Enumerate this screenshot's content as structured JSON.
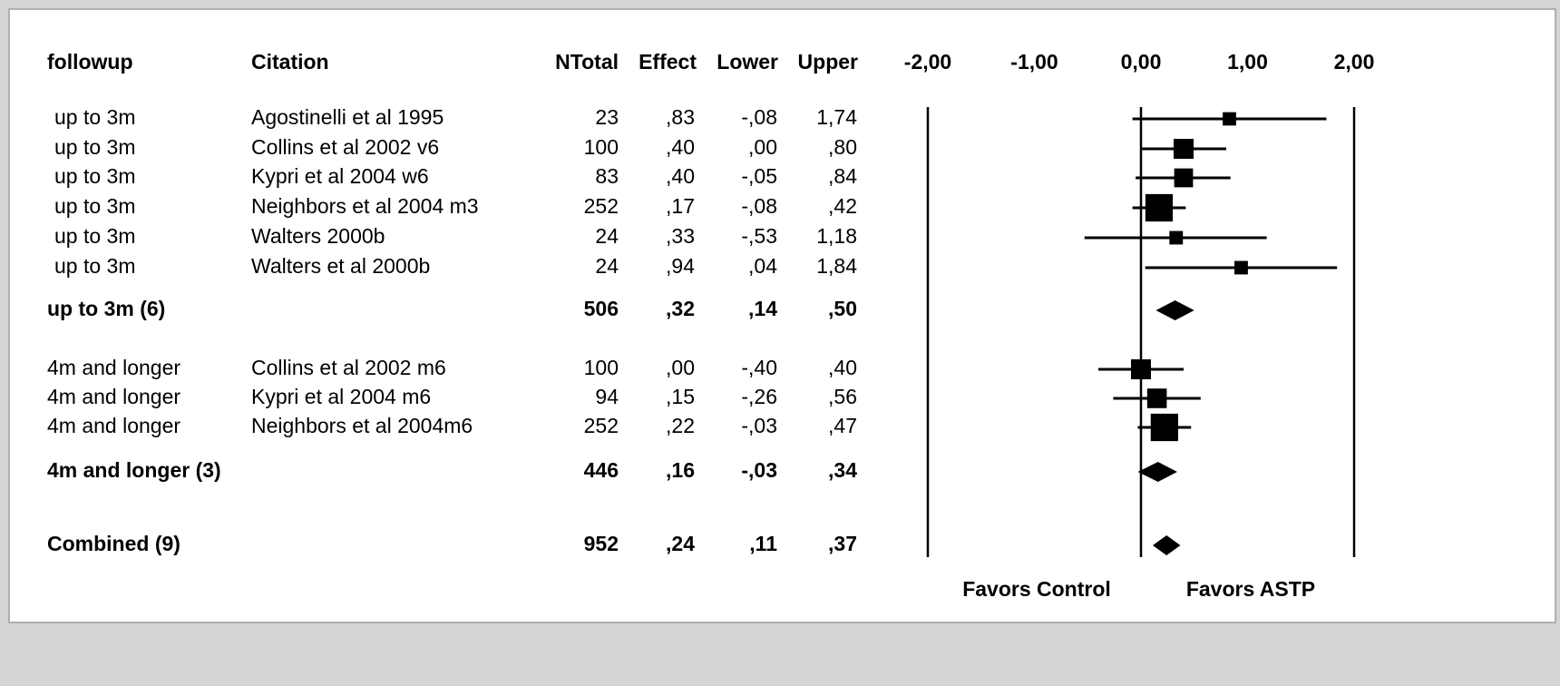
{
  "chart_data": {
    "type": "forest",
    "columns": [
      "followup",
      "Citation",
      "NTotal",
      "Effect",
      "Lower",
      "Upper"
    ],
    "rows": [
      {
        "followup": "up to 3m",
        "citation": "Agostinelli et al 1995",
        "n": 23,
        "effect": 0.83,
        "effect_label": ",83",
        "lower": -0.08,
        "lower_label": "-,08",
        "upper": 1.74,
        "upper_label": "1,74",
        "summary": false
      },
      {
        "followup": "up to 3m",
        "citation": "Collins et al 2002 v6",
        "n": 100,
        "effect": 0.4,
        "effect_label": ",40",
        "lower": 0.0,
        "lower_label": ",00",
        "upper": 0.8,
        "upper_label": ",80",
        "summary": false
      },
      {
        "followup": "up to 3m",
        "citation": "Kypri et al 2004 w6",
        "n": 83,
        "effect": 0.4,
        "effect_label": ",40",
        "lower": -0.05,
        "lower_label": "-,05",
        "upper": 0.84,
        "upper_label": ",84",
        "summary": false
      },
      {
        "followup": "up to 3m",
        "citation": "Neighbors et al  2004 m3",
        "n": 252,
        "effect": 0.17,
        "effect_label": ",17",
        "lower": -0.08,
        "lower_label": "-,08",
        "upper": 0.42,
        "upper_label": ",42",
        "summary": false
      },
      {
        "followup": "up to 3m",
        "citation": "Walters 2000b",
        "n": 24,
        "effect": 0.33,
        "effect_label": ",33",
        "lower": -0.53,
        "lower_label": "-,53",
        "upper": 1.18,
        "upper_label": "1,18",
        "summary": false
      },
      {
        "followup": "up to 3m",
        "citation": "Walters et al 2000b",
        "n": 24,
        "effect": 0.94,
        "effect_label": ",94",
        "lower": 0.04,
        "lower_label": ",04",
        "upper": 1.84,
        "upper_label": "1,84",
        "summary": false
      },
      {
        "followup": "up to 3m (6)",
        "n": 506,
        "effect": 0.32,
        "effect_label": ",32",
        "lower": 0.14,
        "lower_label": ",14",
        "upper": 0.5,
        "upper_label": ",50",
        "summary": true
      },
      {
        "followup": "4m and longer",
        "citation": "Collins et al 2002 m6",
        "n": 100,
        "effect": 0.0,
        "effect_label": ",00",
        "lower": -0.4,
        "lower_label": "-,40",
        "upper": 0.4,
        "upper_label": ",40",
        "summary": false
      },
      {
        "followup": "4m and longer",
        "citation": "Kypri et al 2004 m6",
        "n": 94,
        "effect": 0.15,
        "effect_label": ",15",
        "lower": -0.26,
        "lower_label": "-,26",
        "upper": 0.56,
        "upper_label": ",56",
        "summary": false
      },
      {
        "followup": "4m and longer",
        "citation": "Neighbors et al 2004m6",
        "n": 252,
        "effect": 0.22,
        "effect_label": ",22",
        "lower": -0.03,
        "lower_label": "-,03",
        "upper": 0.47,
        "upper_label": ",47",
        "summary": false
      },
      {
        "followup": "4m and longer (3)",
        "n": 446,
        "effect": 0.16,
        "effect_label": ",16",
        "lower": -0.03,
        "lower_label": "-,03",
        "upper": 0.34,
        "upper_label": ",34",
        "summary": true
      },
      {
        "followup": "Combined (9)",
        "n": 952,
        "effect": 0.24,
        "effect_label": ",24",
        "lower": 0.11,
        "lower_label": ",11",
        "upper": 0.37,
        "upper_label": ",37",
        "summary": true
      }
    ],
    "xlim": [
      -2,
      2
    ],
    "xticks": [
      {
        "value": -2,
        "label": "-2,00"
      },
      {
        "value": -1,
        "label": "-1,00"
      },
      {
        "value": 0,
        "label": "0,00"
      },
      {
        "value": 1,
        "label": "1,00"
      },
      {
        "value": 2,
        "label": "2,00"
      }
    ],
    "left_label": "Favors Control",
    "right_label": "Favors ASTP",
    "color": "#000000"
  }
}
